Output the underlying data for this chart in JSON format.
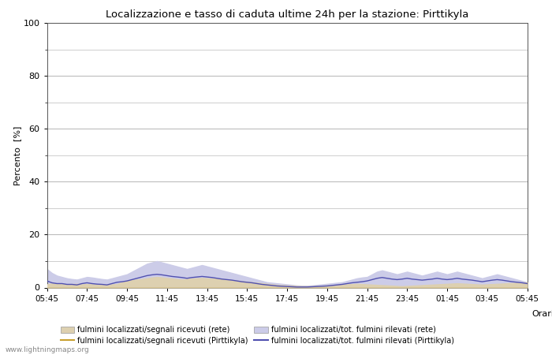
{
  "title": "Localizzazione e tasso di caduta ultime 24h per la stazione: Pirttikyla",
  "ylabel": "Percento  [%]",
  "xlabel": "Orario",
  "ylim": [
    0,
    100
  ],
  "yticks": [
    0,
    20,
    40,
    60,
    80,
    100
  ],
  "yticks_minor": [
    10,
    30,
    50,
    70,
    90
  ],
  "x_labels": [
    "05:45",
    "07:45",
    "09:45",
    "11:45",
    "13:45",
    "15:45",
    "17:45",
    "19:45",
    "21:45",
    "23:45",
    "01:45",
    "03:45",
    "05:45"
  ],
  "background_color": "#ffffff",
  "plot_bg_color": "#ffffff",
  "grid_color": "#aaaaaa",
  "fill_rete_signals_color": "#ddd0b0",
  "fill_rete_total_color": "#cccce8",
  "line_pirttikyla_signals_color": "#c8a030",
  "line_pirttikyla_total_color": "#5050b0",
  "watermark": "www.lightningmaps.org",
  "legend_labels": [
    "fulmini localizzati/segnali ricevuti (rete)",
    "fulmini localizzati/segnali ricevuti (Pirttikyla)",
    "fulmini localizzati/tot. fulmini rilevati (rete)",
    "fulmini localizzati/tot. fulmini rilevati (Pirttikyla)"
  ],
  "n_points": 97,
  "rete_signals": [
    1.2,
    1.5,
    1.3,
    1.4,
    1.2,
    1.3,
    1.4,
    1.2,
    1.3,
    1.2,
    1.1,
    1.0,
    1.1,
    1.2,
    1.3,
    2.0,
    2.5,
    2.8,
    3.0,
    3.2,
    3.5,
    3.8,
    4.0,
    3.8,
    3.6,
    3.4,
    3.2,
    3.0,
    3.2,
    3.4,
    3.5,
    3.6,
    3.5,
    3.4,
    3.3,
    3.2,
    3.0,
    2.8,
    2.6,
    2.4,
    2.2,
    2.0,
    1.8,
    1.6,
    1.4,
    1.2,
    1.0,
    0.9,
    0.8,
    0.7,
    0.6,
    0.5,
    0.5,
    0.5,
    0.6,
    0.7,
    0.8,
    0.9,
    1.0,
    1.1,
    1.2,
    1.3,
    1.4,
    1.3,
    1.2,
    1.1,
    1.0,
    0.9,
    0.8,
    0.7,
    0.6,
    0.5,
    0.6,
    0.7,
    0.8,
    0.9,
    1.0,
    1.1,
    1.2,
    1.3,
    1.4,
    1.5,
    1.6,
    1.5,
    1.4,
    1.3,
    1.2,
    1.1,
    1.2,
    1.3,
    1.4,
    1.5,
    1.6,
    1.7,
    1.8,
    1.9,
    2.0
  ],
  "rete_total": [
    7.0,
    5.5,
    4.5,
    4.0,
    3.5,
    3.2,
    3.0,
    3.5,
    4.0,
    3.8,
    3.5,
    3.2,
    3.0,
    3.5,
    4.0,
    4.5,
    5.0,
    6.0,
    7.0,
    8.0,
    9.0,
    9.5,
    10.0,
    9.5,
    9.0,
    8.5,
    8.0,
    7.5,
    7.0,
    7.5,
    8.0,
    8.5,
    8.0,
    7.5,
    7.0,
    6.5,
    6.0,
    5.5,
    5.0,
    4.5,
    4.0,
    3.5,
    3.0,
    2.5,
    2.0,
    1.8,
    1.6,
    1.4,
    1.2,
    1.0,
    0.8,
    0.7,
    0.7,
    0.8,
    1.0,
    1.2,
    1.4,
    1.6,
    1.8,
    2.0,
    2.5,
    3.0,
    3.5,
    3.8,
    4.0,
    5.0,
    6.0,
    6.5,
    6.0,
    5.5,
    5.0,
    5.5,
    6.0,
    5.5,
    5.0,
    4.5,
    5.0,
    5.5,
    6.0,
    5.5,
    5.0,
    5.5,
    6.0,
    5.5,
    5.0,
    4.5,
    4.0,
    3.5,
    4.0,
    4.5,
    5.0,
    4.5,
    4.0,
    3.5,
    3.0,
    2.5,
    2.0
  ],
  "pirttikyla_signals": [
    0,
    0,
    0,
    0,
    0,
    0,
    0,
    0,
    0,
    0,
    0,
    0,
    0,
    0,
    0,
    0,
    0,
    0,
    0,
    0,
    0,
    0,
    0,
    0,
    0,
    0,
    0,
    0,
    0,
    0,
    0,
    0,
    0,
    0,
    0,
    0,
    0,
    0,
    0,
    0,
    0,
    0,
    0,
    0,
    0,
    0,
    0,
    0,
    0,
    0,
    0,
    0,
    0,
    0,
    0,
    0,
    0,
    0,
    0,
    0,
    0,
    0,
    0,
    0,
    0,
    0,
    0,
    0,
    0,
    0,
    0,
    0,
    0,
    0,
    0,
    0,
    0,
    0,
    0,
    0,
    0,
    0,
    0,
    0,
    0,
    0,
    0,
    0,
    0,
    0,
    0,
    0,
    0,
    0,
    0,
    0,
    0
  ],
  "pirttikyla_total": [
    2.5,
    1.8,
    1.5,
    1.5,
    1.2,
    1.2,
    1.0,
    1.5,
    1.8,
    1.5,
    1.3,
    1.2,
    1.0,
    1.5,
    2.0,
    2.2,
    2.5,
    3.0,
    3.5,
    4.0,
    4.5,
    4.8,
    5.0,
    4.8,
    4.5,
    4.2,
    4.0,
    3.8,
    3.5,
    3.8,
    4.0,
    4.2,
    4.0,
    3.8,
    3.5,
    3.2,
    3.0,
    2.8,
    2.5,
    2.2,
    2.0,
    1.8,
    1.5,
    1.2,
    1.0,
    0.8,
    0.6,
    0.5,
    0.4,
    0.3,
    0.2,
    0.2,
    0.2,
    0.3,
    0.4,
    0.5,
    0.6,
    0.8,
    1.0,
    1.2,
    1.5,
    1.8,
    2.0,
    2.2,
    2.5,
    3.0,
    3.5,
    3.8,
    3.5,
    3.2,
    3.0,
    3.2,
    3.5,
    3.2,
    3.0,
    2.8,
    3.0,
    3.2,
    3.5,
    3.2,
    3.0,
    3.2,
    3.5,
    3.2,
    3.0,
    2.8,
    2.5,
    2.2,
    2.5,
    2.8,
    3.0,
    2.8,
    2.5,
    2.2,
    2.0,
    1.8,
    1.5
  ]
}
